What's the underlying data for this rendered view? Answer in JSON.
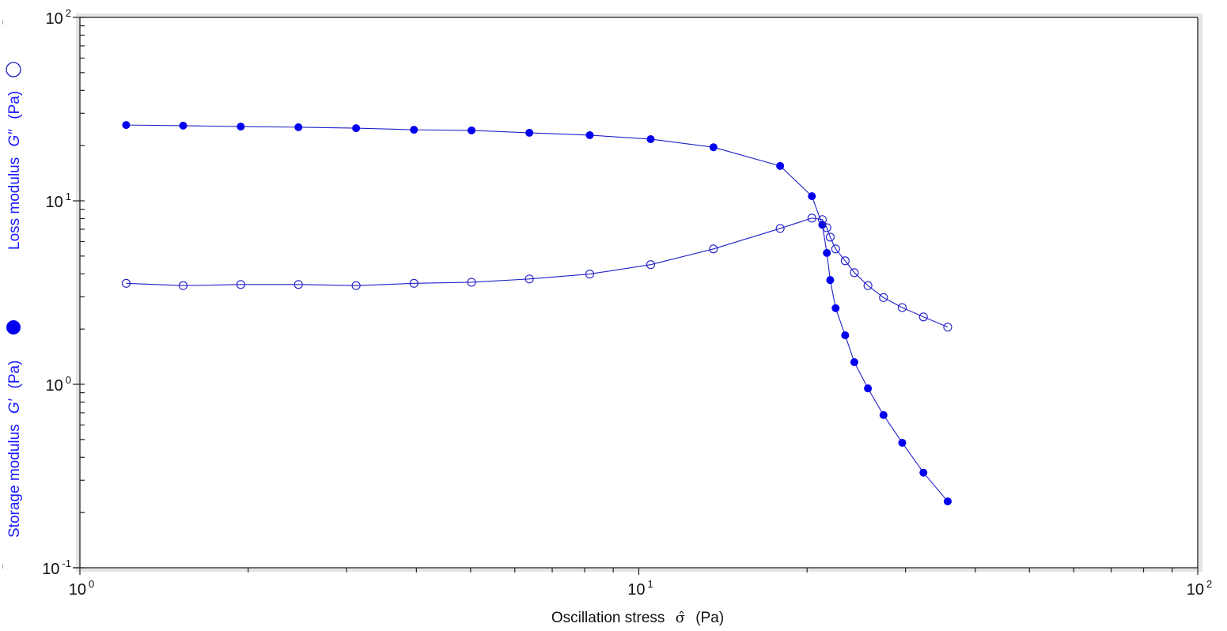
{
  "chart_data": {
    "type": "line",
    "title": "",
    "xlabel": "Oscillation stress σ̂ (Pa)",
    "xlabel_parts": {
      "text": "Oscillation stress",
      "symbol": "σ̂",
      "unit": "(Pa)"
    },
    "ylabel": "Storage modulus G′ (Pa) ●   Loss modulus G″ (Pa) ○",
    "ylabel_parts": {
      "storage": {
        "text": "Storage modulus",
        "symbol": "G′",
        "unit": "(Pa)",
        "marker": "filled-circle"
      },
      "loss": {
        "text": "Loss modulus",
        "symbol": "G″",
        "unit": "(Pa)",
        "marker": "open-circle"
      }
    },
    "xscale": "log",
    "yscale": "log",
    "xlim": [
      1,
      100
    ],
    "ylim": [
      0.1,
      100
    ],
    "x_ticks": [
      {
        "value": 1,
        "base": "10",
        "exp": "0"
      },
      {
        "value": 10,
        "base": "10",
        "exp": "1"
      },
      {
        "value": 100,
        "base": "10",
        "exp": "2"
      }
    ],
    "y_ticks": [
      {
        "value": 0.1,
        "base": "10",
        "exp": "-1"
      },
      {
        "value": 1,
        "base": "10",
        "exp": "0"
      },
      {
        "value": 10,
        "base": "10",
        "exp": "1"
      },
      {
        "value": 100,
        "base": "10",
        "exp": "2"
      }
    ],
    "grid": false,
    "legend": "axis-label markers",
    "line_color": "#2020c8",
    "marker_color": "#0000ee",
    "x": [
      1.21,
      1.53,
      1.94,
      2.46,
      3.12,
      3.96,
      5.02,
      6.37,
      8.17,
      10.5,
      13.6,
      17.9,
      20.4,
      21.3,
      21.7,
      22.0,
      22.5,
      23.4,
      24.3,
      25.7,
      27.4,
      29.6,
      32.3,
      35.7
    ],
    "series": [
      {
        "name": "Storage modulus G′",
        "marker": "filled",
        "values": [
          25.9,
          25.7,
          25.4,
          25.2,
          24.9,
          24.4,
          24.2,
          23.5,
          22.8,
          21.7,
          19.6,
          15.5,
          10.6,
          7.4,
          5.2,
          3.7,
          2.6,
          1.85,
          1.32,
          0.95,
          0.68,
          0.48,
          0.33,
          0.23
        ]
      },
      {
        "name": "Loss modulus G″",
        "marker": "open",
        "values": [
          3.55,
          3.45,
          3.5,
          3.5,
          3.45,
          3.55,
          3.6,
          3.75,
          3.99,
          4.49,
          5.47,
          7.07,
          8.05,
          7.9,
          7.14,
          6.34,
          5.47,
          4.71,
          4.06,
          3.45,
          2.97,
          2.62,
          2.33,
          2.05
        ]
      }
    ]
  }
}
